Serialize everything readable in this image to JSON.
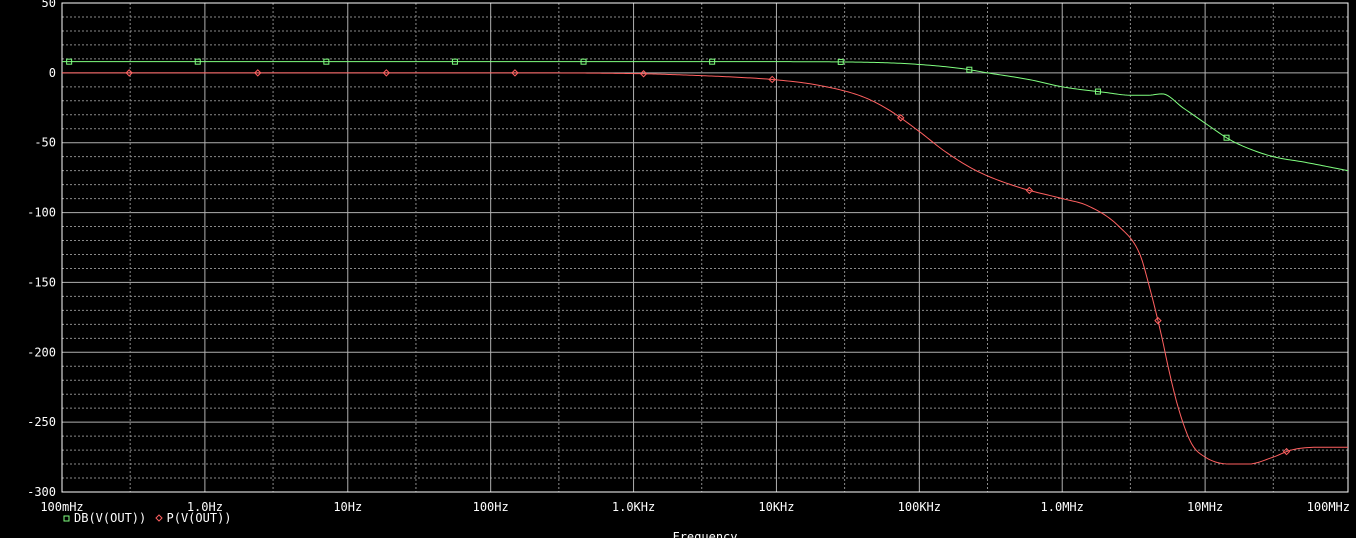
{
  "chart_data": {
    "type": "line",
    "xlabel": "Frequency",
    "ylabel": "",
    "xscale": "log",
    "xlim": [
      0.1,
      100000000
    ],
    "ylim": [
      -300,
      50
    ],
    "grid": true,
    "grid_style": "dotted minor, solid major",
    "legend_placement": "bottom-left",
    "x_ticks": [
      {
        "value": 0.1,
        "label": "100mHz"
      },
      {
        "value": 1,
        "label": "1.0Hz"
      },
      {
        "value": 10,
        "label": "10Hz"
      },
      {
        "value": 100,
        "label": "100Hz"
      },
      {
        "value": 1000,
        "label": "1.0KHz"
      },
      {
        "value": 10000,
        "label": "10KHz"
      },
      {
        "value": 100000,
        "label": "100KHz"
      },
      {
        "value": 1000000,
        "label": "1.0MHz"
      },
      {
        "value": 10000000,
        "label": "10MHz"
      },
      {
        "value": 100000000,
        "label": "100MHz"
      }
    ],
    "y_ticks": [
      {
        "value": 50,
        "label": "50"
      },
      {
        "value": 0,
        "label": "0"
      },
      {
        "value": -50,
        "label": "-50"
      },
      {
        "value": -100,
        "label": "-100"
      },
      {
        "value": -150,
        "label": "-150"
      },
      {
        "value": -200,
        "label": "-200"
      },
      {
        "value": -250,
        "label": "-250"
      },
      {
        "value": -300,
        "label": "-300"
      }
    ],
    "series": [
      {
        "name": "DB(V(OUT))",
        "color": "#80ff80",
        "marker": "square",
        "x": [
          0.1,
          1,
          10,
          100,
          1000,
          10000,
          30000,
          60000,
          100000,
          200000,
          300000,
          600000,
          1000000,
          2000000,
          3000000,
          4000000,
          5000000,
          7000000,
          10000000,
          15000000,
          20000000,
          30000000,
          50000000,
          100000000
        ],
        "y": [
          8,
          8,
          8,
          8,
          8,
          8,
          7.8,
          7.2,
          6,
          3,
          0,
          -5,
          -10,
          -14,
          -16,
          -16,
          -15,
          -25,
          -36,
          -48,
          -54,
          -60,
          -64,
          -70
        ]
      },
      {
        "name": "P(V(OUT))",
        "color": "#ff6060",
        "marker": "diamond",
        "x": [
          0.1,
          1,
          10,
          100,
          1000,
          3000,
          5000,
          10000,
          20000,
          40000,
          60000,
          100000,
          150000,
          250000,
          500000,
          1000000,
          1500000,
          2500000,
          3500000,
          4000000,
          5000000,
          5500000,
          6500000,
          8000000,
          10000000,
          15000000,
          20000000,
          30000000,
          40000000,
          60000000,
          100000000
        ],
        "y": [
          0,
          0,
          0,
          0,
          -0.5,
          -2,
          -3,
          -5,
          -9,
          -17,
          -26,
          -42,
          -56,
          -70,
          -82,
          -90,
          -95,
          -110,
          -130,
          -150,
          -190,
          -210,
          -240,
          -265,
          -275,
          -280,
          -280,
          -275,
          -270,
          -268,
          -268
        ]
      }
    ]
  }
}
